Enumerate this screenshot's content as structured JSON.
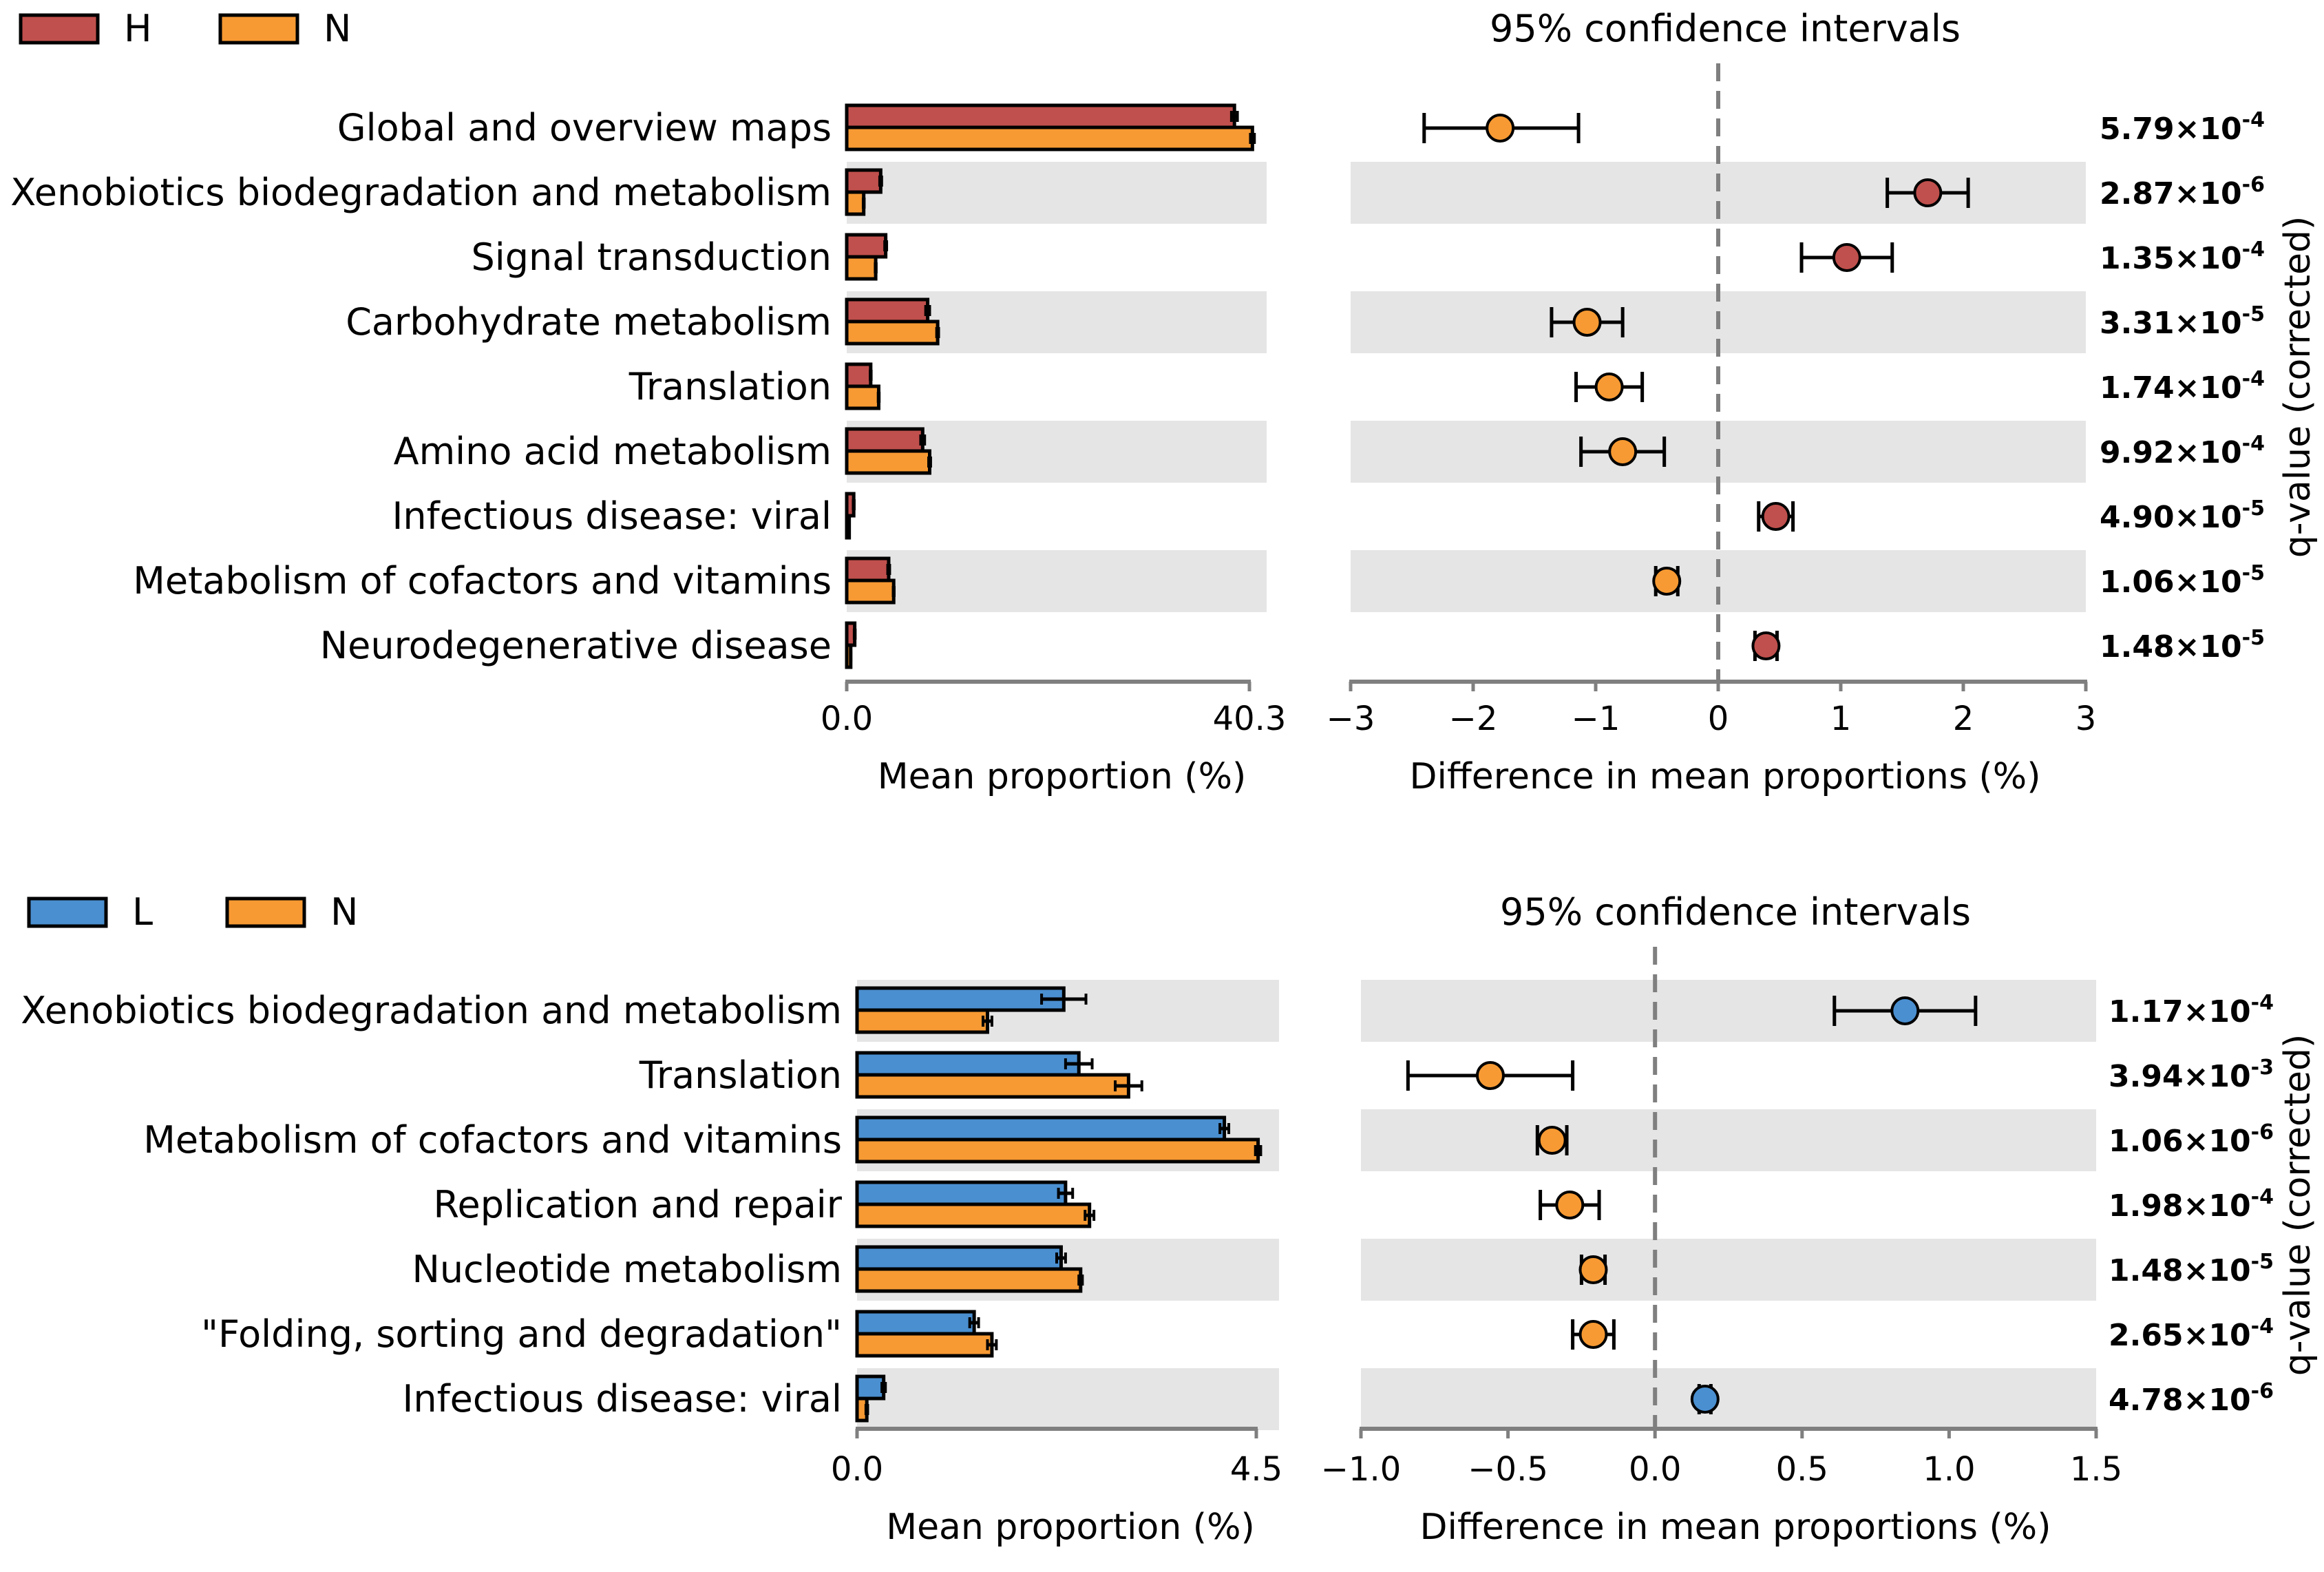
{
  "chart_data": [
    {
      "type": "bar",
      "panel": "H vs N",
      "legend": [
        {
          "name": "H",
          "color": "#c0504d"
        },
        {
          "name": "N",
          "color": "#f79a33"
        }
      ],
      "categories": [
        "Global and overview maps",
        "Xenobiotics biodegradation and metabolism",
        "Signal transduction",
        "Carbohydrate metabolism",
        "Translation",
        "Amino acid metabolism",
        "Infectious disease: viral",
        "Metabolism of cofactors and vitamins",
        "Neurodegenerative disease"
      ],
      "series": [
        {
          "name": "H",
          "values": [
            38.8,
            3.4,
            3.9,
            8.1,
            2.4,
            7.6,
            0.7,
            4.2,
            0.8
          ],
          "err": [
            0.3,
            0.1,
            0.1,
            0.2,
            0.05,
            0.2,
            0.05,
            0.1,
            0.05
          ]
        },
        {
          "name": "N",
          "values": [
            40.6,
            1.7,
            2.9,
            9.1,
            3.2,
            8.3,
            0.25,
            4.7,
            0.4
          ],
          "err": [
            0.2,
            0.05,
            0.05,
            0.1,
            0.05,
            0.1,
            0.02,
            0.05,
            0.02
          ]
        }
      ],
      "xlabel": "Mean proportion (%)",
      "xticks": [
        "0.0",
        "40.3"
      ],
      "xlim": [
        0,
        40.3
      ],
      "ci": {
        "title": "95% confidence intervals",
        "xlabel": "Difference in mean proportions (%)",
        "xlim": [
          -3,
          3
        ],
        "xticks": [
          "−3",
          "−2",
          "−1",
          "0",
          "1",
          "2",
          "3"
        ],
        "estimates": [
          -1.78,
          1.71,
          1.05,
          -1.07,
          -0.89,
          -0.78,
          0.47,
          -0.42,
          0.39
        ],
        "lower": [
          -2.4,
          1.38,
          0.68,
          -1.36,
          -1.16,
          -1.12,
          0.33,
          -0.51,
          0.3
        ],
        "upper": [
          -1.14,
          2.04,
          1.42,
          -0.78,
          -0.62,
          -0.44,
          0.61,
          -0.33,
          0.48
        ],
        "favors": [
          "N",
          "H",
          "H",
          "N",
          "N",
          "N",
          "H",
          "N",
          "H"
        ]
      },
      "qvalues_label": "q-value (corrected)",
      "qvalues": [
        {
          "m": "5.79",
          "e": "-4"
        },
        {
          "m": "2.87",
          "e": "-6"
        },
        {
          "m": "1.35",
          "e": "-4"
        },
        {
          "m": "3.31",
          "e": "-5"
        },
        {
          "m": "1.74",
          "e": "-4"
        },
        {
          "m": "9.92",
          "e": "-4"
        },
        {
          "m": "4.90",
          "e": "-5"
        },
        {
          "m": "1.06",
          "e": "-5"
        },
        {
          "m": "1.48",
          "e": "-5"
        }
      ]
    },
    {
      "type": "bar",
      "panel": "L vs N",
      "legend": [
        {
          "name": "L",
          "color": "#4a8fd0"
        },
        {
          "name": "N",
          "color": "#f79a33"
        }
      ],
      "categories": [
        "Xenobiotics biodegradation and metabolism",
        "Translation",
        "Metabolism of cofactors and vitamins",
        "Replication and repair",
        "Nucleotide metabolism",
        "\"Folding, sorting and degradation\"",
        "Infectious disease: viral"
      ],
      "series": [
        {
          "name": "L",
          "values": [
            2.33,
            2.5,
            4.14,
            2.35,
            2.3,
            1.32,
            0.3
          ],
          "err": [
            0.25,
            0.15,
            0.05,
            0.08,
            0.05,
            0.05,
            0.02
          ]
        },
        {
          "name": "N",
          "values": [
            1.47,
            3.06,
            4.52,
            2.62,
            2.52,
            1.52,
            0.11
          ],
          "err": [
            0.05,
            0.15,
            0.03,
            0.05,
            0.02,
            0.05,
            0.01
          ]
        }
      ],
      "xlabel": "Mean proportion (%)",
      "xticks": [
        "0.0",
        "4.5"
      ],
      "xlim": [
        0,
        4.5
      ],
      "ci": {
        "title": "95% confidence intervals",
        "xlabel": "Difference in mean proportions (%)",
        "xlim": [
          -1.0,
          1.5
        ],
        "xticks": [
          "−1.0",
          "−0.5",
          "0.0",
          "0.5",
          "1.0",
          "1.5"
        ],
        "estimates": [
          0.85,
          -0.56,
          -0.35,
          -0.29,
          -0.21,
          -0.21,
          0.17
        ],
        "lower": [
          0.61,
          -0.84,
          -0.4,
          -0.39,
          -0.25,
          -0.28,
          0.15
        ],
        "upper": [
          1.09,
          -0.28,
          -0.3,
          -0.19,
          -0.17,
          -0.14,
          0.19
        ],
        "favors": [
          "L",
          "N",
          "N",
          "N",
          "N",
          "N",
          "L"
        ]
      },
      "qvalues_label": "q-value (corrected)",
      "qvalues": [
        {
          "m": "1.17",
          "e": "-4"
        },
        {
          "m": "3.94",
          "e": "-3"
        },
        {
          "m": "1.06",
          "e": "-6"
        },
        {
          "m": "1.98",
          "e": "-4"
        },
        {
          "m": "1.48",
          "e": "-5"
        },
        {
          "m": "2.65",
          "e": "-4"
        },
        {
          "m": "4.78",
          "e": "-6"
        }
      ]
    }
  ]
}
